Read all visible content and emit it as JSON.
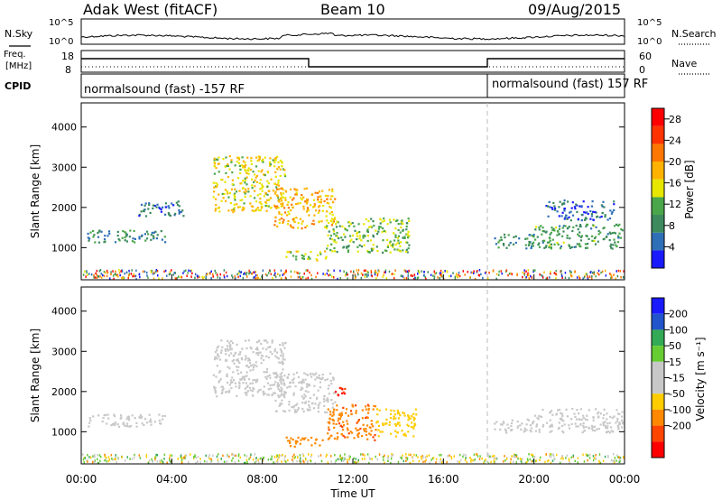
{
  "header": {
    "station": "Adak West (fitACF)",
    "beam": "Beam 10",
    "date": "09/Aug/2015"
  },
  "noise_panel": {
    "left_label": "N.Sky",
    "left_ticks": [
      "10^5",
      "10^0"
    ],
    "right_label": "N.Search",
    "right_ticks": [
      "10^5",
      "10^0"
    ]
  },
  "freq_panel": {
    "left_label_1": "Freq.",
    "left_label_2": "[MHz]",
    "left_ticks": [
      "18",
      "8"
    ],
    "right_label": "Nave",
    "right_ticks": [
      "60",
      "0"
    ]
  },
  "cpid_panel": {
    "label": "CPID",
    "mode_1": "normalsound (fast) -157 RF",
    "mode_2": "normalsound (fast) 157 RF"
  },
  "colors": {
    "power": [
      "#1a1aff",
      "#2f6fb8",
      "#3c8a5e",
      "#4aa64a",
      "#e6e600",
      "#ffb300",
      "#ff7700",
      "#ff3300",
      "#ff0000"
    ],
    "velocity": [
      "#ff0000",
      "#ff4400",
      "#ff8800",
      "#ffcc00",
      "#c8c8c8",
      "#c8c8c8",
      "#66cc33",
      "#33aa55",
      "#2255cc",
      "#1a1aff"
    ]
  },
  "chart_data": [
    {
      "type": "heatmap",
      "name": "power",
      "xlabel": "",
      "ylabel": "Slant Range [km]",
      "x_ticks": [
        "00:00",
        "04:00",
        "08:00",
        "12:00",
        "16:00",
        "20:00",
        "00:00"
      ],
      "y_ticks": [
        "1000",
        "2000",
        "3000",
        "4000"
      ],
      "xlim": [
        0,
        24
      ],
      "ylim": [
        200,
        4600
      ],
      "colorbar": {
        "label": "Power [dB]",
        "ticks": [
          "4",
          "8",
          "12",
          "16",
          "20",
          "24",
          "28"
        ],
        "range": [
          0,
          30
        ]
      },
      "regions": [
        {
          "t0": 0.2,
          "t1": 3.8,
          "r0": 1150,
          "r1": 1450,
          "value": 8
        },
        {
          "t0": 2.5,
          "t1": 4.5,
          "r0": 1800,
          "r1": 2200,
          "value": 6
        },
        {
          "t0": 5.8,
          "t1": 9.0,
          "r0": 1900,
          "r1": 3300,
          "value": 16
        },
        {
          "t0": 8.5,
          "t1": 11.2,
          "r0": 1500,
          "r1": 2500,
          "value": 18
        },
        {
          "t0": 9.0,
          "t1": 10.8,
          "r0": 700,
          "r1": 950,
          "value": 14
        },
        {
          "t0": 10.8,
          "t1": 14.5,
          "r0": 900,
          "r1": 1750,
          "value": 12
        },
        {
          "t0": 18.2,
          "t1": 20.0,
          "r0": 1000,
          "r1": 1350,
          "value": 8
        },
        {
          "t0": 20.0,
          "t1": 23.9,
          "r0": 1000,
          "r1": 1600,
          "value": 10
        },
        {
          "t0": 20.5,
          "t1": 23.5,
          "r0": 1700,
          "r1": 2200,
          "value": 5
        }
      ]
    },
    {
      "type": "heatmap",
      "name": "velocity",
      "xlabel": "Time UT",
      "ylabel": "Slant Range [km]",
      "x_ticks": [
        "00:00",
        "04:00",
        "08:00",
        "12:00",
        "16:00",
        "20:00",
        "00:00"
      ],
      "y_ticks": [
        "1000",
        "2000",
        "3000",
        "4000"
      ],
      "xlim": [
        0,
        24
      ],
      "ylim": [
        200,
        4600
      ],
      "colorbar": {
        "label": "Velocity [m s⁻¹]",
        "ticks": [
          "200",
          "100",
          "50",
          "15",
          "-15",
          "-50",
          "-100",
          "-200"
        ]
      },
      "regions": [
        {
          "t0": 0.2,
          "t1": 3.8,
          "r0": 1150,
          "r1": 1450,
          "value": 0
        },
        {
          "t0": 5.8,
          "t1": 9.0,
          "r0": 1900,
          "r1": 3300,
          "value": 0
        },
        {
          "t0": 8.5,
          "t1": 11.2,
          "r0": 1500,
          "r1": 2500,
          "value": 0
        },
        {
          "t0": 11.2,
          "t1": 11.8,
          "r0": 1900,
          "r1": 2200,
          "value": -200
        },
        {
          "t0": 9.0,
          "t1": 10.8,
          "r0": 650,
          "r1": 900,
          "value": -80
        },
        {
          "t0": 10.8,
          "t1": 13.0,
          "r0": 800,
          "r1": 1700,
          "value": -90
        },
        {
          "t0": 13.0,
          "t1": 14.8,
          "r0": 900,
          "r1": 1600,
          "value": -30
        },
        {
          "t0": 18.2,
          "t1": 20.0,
          "r0": 1000,
          "r1": 1350,
          "value": 0
        },
        {
          "t0": 20.0,
          "t1": 23.9,
          "r0": 1000,
          "r1": 1600,
          "value": 0
        }
      ]
    }
  ]
}
